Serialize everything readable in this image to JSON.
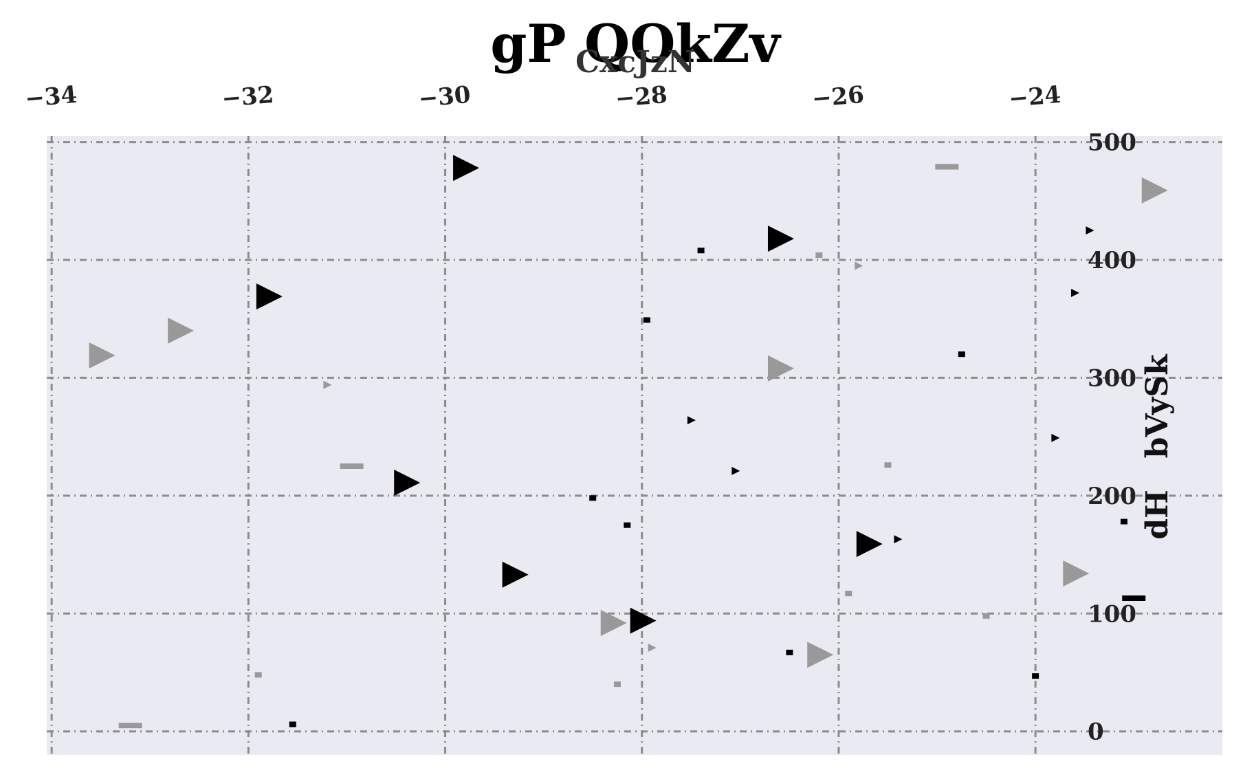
{
  "chart_data": {
    "type": "scatter",
    "title": "gP QOkZv",
    "subtitle": "CxcJzN",
    "ylabel": "dH   bVySk",
    "xlim": [
      -34.05,
      -22.1
    ],
    "ylim": [
      -20,
      505
    ],
    "x_ticks": [
      -34,
      -32,
      -30,
      -28,
      -26,
      -24
    ],
    "x_tick_labels": [
      "−34",
      "−32",
      "−30",
      "−28",
      "−26",
      "−24"
    ],
    "y_ticks": [
      0,
      100,
      200,
      300,
      400,
      500
    ],
    "y_tick_labels": [
      "0",
      "100",
      "200",
      "300",
      "400",
      "500"
    ],
    "x_axis_position": "top",
    "y_axis_position": "right",
    "grid": true,
    "background": "#eaeaf2",
    "series": [
      {
        "marker": "triangle-right",
        "color": "#000000",
        "points": [
          {
            "x": -29.8,
            "y": 478,
            "size": 38
          },
          {
            "x": -26.6,
            "y": 418,
            "size": 38
          },
          {
            "x": -31.8,
            "y": 369,
            "size": 38
          },
          {
            "x": -30.4,
            "y": 211,
            "size": 38
          },
          {
            "x": -29.3,
            "y": 133,
            "size": 38
          },
          {
            "x": -28.0,
            "y": 94,
            "size": 38
          },
          {
            "x": -25.7,
            "y": 159,
            "size": 38
          },
          {
            "x": -27.5,
            "y": 264,
            "size": 12
          },
          {
            "x": -27.05,
            "y": 221,
            "size": 12
          },
          {
            "x": -25.4,
            "y": 163,
            "size": 12
          },
          {
            "x": -23.8,
            "y": 249,
            "size": 12
          },
          {
            "x": -23.6,
            "y": 372,
            "size": 12
          },
          {
            "x": -23.45,
            "y": 425,
            "size": 12
          }
        ]
      },
      {
        "marker": "triangle-right",
        "color": "#999999",
        "points": [
          {
            "x": -33.5,
            "y": 319,
            "size": 38
          },
          {
            "x": -32.7,
            "y": 340,
            "size": 38
          },
          {
            "x": -26.6,
            "y": 308,
            "size": 38
          },
          {
            "x": -28.3,
            "y": 92,
            "size": 38
          },
          {
            "x": -26.2,
            "y": 65,
            "size": 38
          },
          {
            "x": -23.6,
            "y": 134,
            "size": 38
          },
          {
            "x": -22.8,
            "y": 459,
            "size": 38
          },
          {
            "x": -31.2,
            "y": 294,
            "size": 12
          },
          {
            "x": -25.8,
            "y": 395,
            "size": 12
          },
          {
            "x": -27.9,
            "y": 71,
            "size": 12
          }
        ]
      },
      {
        "marker": "dash",
        "color": "#000000",
        "points": [
          {
            "x": -27.4,
            "y": 408,
            "w": 10
          },
          {
            "x": -27.95,
            "y": 349,
            "w": 10
          },
          {
            "x": -24.75,
            "y": 320,
            "w": 10
          },
          {
            "x": -28.5,
            "y": 198,
            "w": 10
          },
          {
            "x": -28.15,
            "y": 175,
            "w": 10
          },
          {
            "x": -26.5,
            "y": 67,
            "w": 10
          },
          {
            "x": -24.0,
            "y": 47,
            "w": 10
          },
          {
            "x": -31.55,
            "y": 6,
            "w": 10
          },
          {
            "x": -23.1,
            "y": 178,
            "w": 10
          },
          {
            "x": -23.0,
            "y": 113,
            "w": 34
          }
        ]
      },
      {
        "marker": "dash",
        "color": "#999999",
        "points": [
          {
            "x": -24.9,
            "y": 479,
            "w": 34
          },
          {
            "x": -26.2,
            "y": 404,
            "w": 10
          },
          {
            "x": -30.95,
            "y": 225,
            "w": 34
          },
          {
            "x": -25.5,
            "y": 226,
            "w": 10
          },
          {
            "x": -25.9,
            "y": 117,
            "w": 10
          },
          {
            "x": -24.5,
            "y": 98,
            "w": 10
          },
          {
            "x": -31.9,
            "y": 48,
            "w": 10
          },
          {
            "x": -28.25,
            "y": 40,
            "w": 10
          },
          {
            "x": -33.2,
            "y": 5,
            "w": 34
          }
        ]
      }
    ]
  }
}
